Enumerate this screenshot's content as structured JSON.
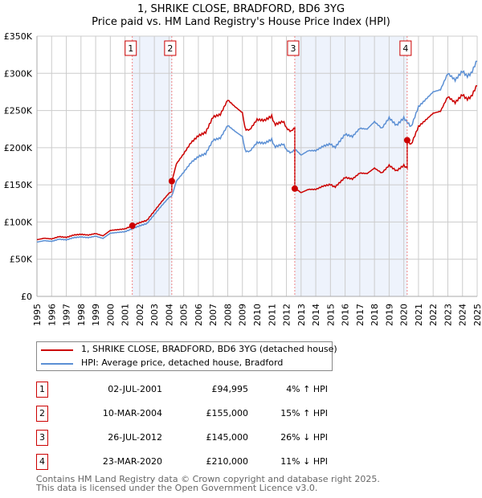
{
  "chart_data": {
    "type": "line",
    "title": "1, SHRIKE CLOSE, BRADFORD, BD6 3YG",
    "subtitle": "Price paid vs. HM Land Registry's House Price Index (HPI)",
    "xlim": [
      1995,
      2025
    ],
    "ylim": [
      0,
      350000
    ],
    "yticks": [
      0,
      50000,
      100000,
      150000,
      200000,
      250000,
      300000,
      350000
    ],
    "ytick_labels": [
      "£0",
      "£50K",
      "£100K",
      "£150K",
      "£200K",
      "£250K",
      "£300K",
      "£350K"
    ],
    "xticks": [
      "1995",
      "1996",
      "1997",
      "1998",
      "1999",
      "2000",
      "2001",
      "2002",
      "2003",
      "2004",
      "2005",
      "2006",
      "2007",
      "2008",
      "2009",
      "2010",
      "2011",
      "2012",
      "2013",
      "2014",
      "2015",
      "2016",
      "2017",
      "2018",
      "2019",
      "2020",
      "2021",
      "2022",
      "2023",
      "2024",
      "2025"
    ],
    "grid": true,
    "colors": {
      "property": "#cc0000",
      "hpi": "#5b8fd4",
      "shade": "#eef3fc"
    },
    "hpi_series": {
      "name": "HPI: Average price, detached house, Bradford",
      "x": [
        1995,
        1995.5,
        1996,
        1996.5,
        1997,
        1997.5,
        1998,
        1998.5,
        1999,
        1999.5,
        2000,
        2000.5,
        2001,
        2001.5,
        2002,
        2002.5,
        2003,
        2003.5,
        2004,
        2004.2,
        2004.5,
        2005,
        2005.5,
        2006,
        2006.5,
        2007,
        2007.5,
        2008,
        2008.5,
        2009,
        2009.2,
        2009.5,
        2010,
        2010.5,
        2011,
        2011.2,
        2011.8,
        2012,
        2012.3,
        2012.6,
        2013,
        2013.5,
        2014,
        2014.5,
        2015,
        2015.3,
        2016,
        2016.5,
        2017,
        2017.5,
        2018,
        2018.5,
        2019,
        2019.5,
        2020,
        2020.5,
        2021,
        2021.5,
        2022,
        2022.5,
        2023,
        2023.5,
        2024,
        2024.3,
        2024.6,
        2025
      ],
      "values": [
        73,
        75,
        74,
        77,
        76,
        79,
        80,
        79,
        81,
        78,
        85,
        86,
        87,
        91,
        95,
        98,
        110,
        122,
        133,
        135,
        155,
        167,
        180,
        188,
        192,
        210,
        213,
        230,
        222,
        215,
        195,
        195,
        207,
        206,
        211,
        201,
        205,
        197,
        193,
        198,
        190,
        196,
        196,
        202,
        205,
        200,
        218,
        215,
        226,
        225,
        235,
        226,
        240,
        230,
        240,
        228,
        255,
        265,
        275,
        278,
        300,
        291,
        303,
        296,
        300,
        318
      ]
    },
    "property_series": {
      "name": "1, SHRIKE CLOSE, BRADFORD, BD6 3YG (detached house)",
      "note": "HPI indexed from each sale"
    },
    "sales": [
      {
        "n": "1",
        "date": "02-JUL-2001",
        "x": 2001.5,
        "price": "£94,995",
        "value": 94995,
        "hpi": "4% ↑ HPI"
      },
      {
        "n": "2",
        "date": "10-MAR-2004",
        "x": 2004.19,
        "price": "£155,000",
        "value": 155000,
        "hpi": "15% ↑ HPI"
      },
      {
        "n": "3",
        "date": "26-JUL-2012",
        "x": 2012.57,
        "price": "£145,000",
        "value": 145000,
        "hpi": "26% ↓ HPI"
      },
      {
        "n": "4",
        "date": "23-MAR-2020",
        "x": 2020.23,
        "price": "£210,000",
        "value": 210000,
        "hpi": "11% ↓ HPI"
      }
    ]
  },
  "legend": {
    "property": "1, SHRIKE CLOSE, BRADFORD, BD6 3YG (detached house)",
    "hpi": "HPI: Average price, detached house, Bradford"
  },
  "footer": {
    "line1": "Contains HM Land Registry data © Crown copyright and database right 2025.",
    "line2": "This data is licensed under the Open Government Licence v3.0."
  }
}
